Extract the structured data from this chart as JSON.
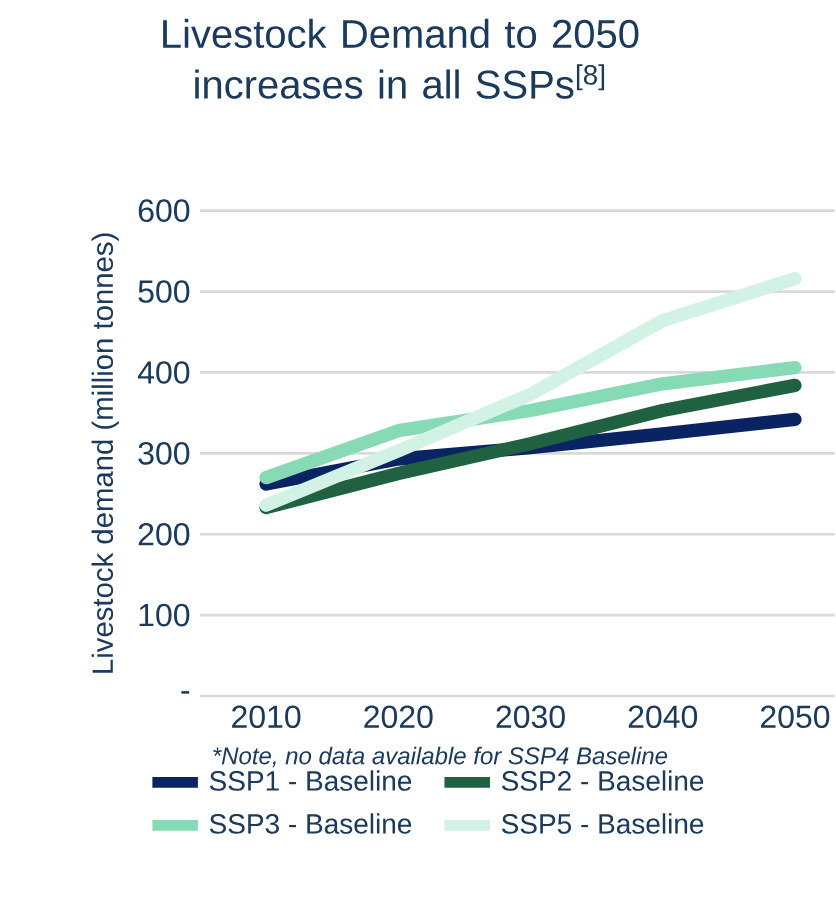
{
  "chart_data": {
    "type": "line",
    "title": "Livestock Demand to 2050 increases in all SSPs$^{[8]}$",
    "ylabel": "Livestock demand (million tonnes)",
    "annotations": [
      "*Note, no data available for SSP4 Baseline"
    ],
    "x": [
      2010,
      2020,
      2030,
      2040,
      2050
    ],
    "xlim": [
      2005,
      2053
    ],
    "xticks": [
      2010,
      2020,
      2030,
      2040,
      2050
    ],
    "ylim": [
      0,
      600
    ],
    "yticks": [
      {
        "value": 0,
        "label": "-"
      },
      100,
      200,
      300,
      400,
      500,
      600
    ],
    "grid": "y",
    "legend": "bottom",
    "marker": "none",
    "line_style": "solid",
    "series": [
      {
        "name": "SSP1 - Baseline",
        "color": "#0a2463",
        "values": [
          262,
          293,
          307,
          324,
          342
        ]
      },
      {
        "name": "SSP2 - Baseline",
        "color": "#1f6140",
        "values": [
          233,
          275,
          312,
          353,
          384
        ]
      },
      {
        "name": "SSP3 - Baseline",
        "color": "#86dbb6",
        "values": [
          270,
          328,
          353,
          386,
          406
        ]
      },
      {
        "name": "SSP5 - Baseline",
        "color": "#d3f2e6",
        "values": [
          236,
          303,
          373,
          464,
          516
        ]
      }
    ]
  }
}
